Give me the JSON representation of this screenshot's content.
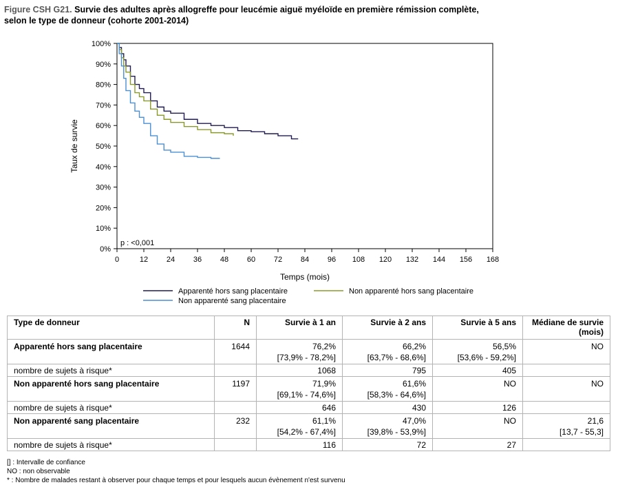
{
  "figure": {
    "id": "Figure CSH G21.",
    "title": "Survie des adultes après allogreffe pour leucémie aiguë myéloïde en première rémission complète,",
    "title_line2": "selon le type de donneur (cohorte 2001-2014)"
  },
  "chart_data": {
    "type": "line",
    "title": "Survie des adultes après allogreffe pour leucémie aiguë myéloïde en première rémission complète, selon le type de donneur (cohorte 2001-2014)",
    "xlabel": "Temps (mois)",
    "ylabel": "Taux de survie",
    "xlim": [
      0,
      168
    ],
    "ylim": [
      0,
      100
    ],
    "x_ticks": [
      0,
      12,
      24,
      36,
      48,
      60,
      72,
      84,
      96,
      108,
      120,
      132,
      144,
      156,
      168
    ],
    "y_ticks": [
      0,
      10,
      20,
      30,
      40,
      50,
      60,
      70,
      80,
      90,
      100
    ],
    "y_tick_labels": [
      "0%",
      "10%",
      "20%",
      "30%",
      "40%",
      "50%",
      "60%",
      "70%",
      "80%",
      "90%",
      "100%"
    ],
    "annotation": "p : <0,001",
    "legend_position": "bottom",
    "grid": false,
    "series": [
      {
        "name": "Apparenté hors sang placentaire",
        "color": "#1f1a4f",
        "x": [
          0,
          1,
          2,
          3,
          4,
          6,
          8,
          10,
          12,
          15,
          18,
          21,
          24,
          30,
          36,
          42,
          48,
          54,
          60,
          66,
          72,
          78,
          81
        ],
        "y": [
          100,
          98,
          95,
          92,
          89,
          84,
          80,
          78,
          76,
          72,
          69,
          67,
          66,
          63,
          61,
          60,
          59,
          57.5,
          57,
          56,
          55,
          53.5,
          53.5
        ]
      },
      {
        "name": "Non apparenté hors sang placentaire",
        "color": "#8a9a2a",
        "x": [
          0,
          1,
          2,
          3,
          4,
          6,
          8,
          10,
          12,
          15,
          18,
          21,
          24,
          30,
          36,
          42,
          48,
          52
        ],
        "y": [
          100,
          97,
          93,
          89,
          86,
          80,
          76,
          74,
          72,
          68,
          65,
          63,
          61.5,
          59.5,
          58,
          56.5,
          56,
          55
        ]
      },
      {
        "name": "Non apparenté sang placentaire",
        "color": "#4a8fd4",
        "x": [
          0,
          1,
          2,
          3,
          4,
          6,
          8,
          10,
          12,
          15,
          18,
          21,
          24,
          30,
          36,
          42,
          46
        ],
        "y": [
          100,
          95,
          89,
          83,
          77,
          71,
          67,
          64,
          61,
          55,
          51,
          48,
          47,
          45,
          44.5,
          44,
          44
        ]
      }
    ]
  },
  "table": {
    "headers": [
      "Type de donneur",
      "N",
      "Survie à 1 an",
      "Survie à 2 ans",
      "Survie à 5 ans",
      "Médiane de survie (mois)"
    ],
    "rows": [
      {
        "label": "Apparenté hors sang placentaire",
        "n": "1644",
        "s1": "76,2%",
        "s1_ci": "[73,9% - 78,2%]",
        "s2": "66,2%",
        "s2_ci": "[63,7% - 68,6%]",
        "s5": "56,5%",
        "s5_ci": "[53,6% - 59,2%]",
        "med": "NO",
        "med_ci": ""
      },
      {
        "label": "nombre de sujets à risque*",
        "r1": "1068",
        "r2": "795",
        "r5": "405"
      },
      {
        "label": "Non apparenté hors sang placentaire",
        "n": "1197",
        "s1": "71,9%",
        "s1_ci": "[69,1% - 74,6%]",
        "s2": "61,6%",
        "s2_ci": "[58,3% - 64,6%]",
        "s5": "NO",
        "s5_ci": "",
        "med": "NO",
        "med_ci": ""
      },
      {
        "label": "nombre de sujets à risque*",
        "r1": "646",
        "r2": "430",
        "r5": "126"
      },
      {
        "label": "Non apparenté sang placentaire",
        "n": "232",
        "s1": "61,1%",
        "s1_ci": "[54,2% - 67,4%]",
        "s2": "47,0%",
        "s2_ci": "[39,8% - 53,9%]",
        "s5": "NO",
        "s5_ci": "",
        "med": "21,6",
        "med_ci": "[13,7 - 55,3]"
      },
      {
        "label": "nombre de sujets à risque*",
        "r1": "116",
        "r2": "72",
        "r5": "27"
      }
    ]
  },
  "notes": [
    "[] : Intervalle de confiance",
    "NO : non observable",
    "* : Nombre de malades restant à observer pour chaque temps et pour lesquels aucun évènement n'est survenu"
  ]
}
